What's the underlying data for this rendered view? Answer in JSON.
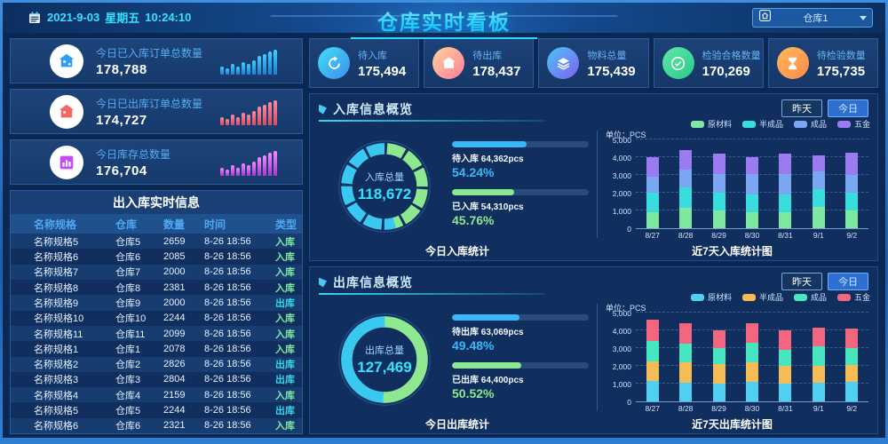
{
  "header": {
    "date": "2021-9-03",
    "weekday": "星期五",
    "time": "10:24:10",
    "title": "仓库实时看板",
    "warehouse": "仓库1"
  },
  "left_cards": [
    {
      "label": "今日已入库订单总数量",
      "value": "178,788",
      "icon": "warehouse-in",
      "accent": "#2f9df4",
      "bar_from": "#1f7fd0",
      "bar_to": "#3ecfff",
      "bars": [
        4,
        3,
        5,
        4,
        6,
        5,
        7,
        9,
        10,
        11,
        12
      ]
    },
    {
      "label": "今日已出库订单总数量",
      "value": "174,727",
      "icon": "warehouse-out",
      "accent": "#f4695f",
      "bar_from": "#d84a5f",
      "bar_to": "#ff8aa0",
      "bars": [
        4,
        3,
        5,
        4,
        6,
        5,
        7,
        9,
        10,
        11,
        12
      ]
    },
    {
      "label": "今日库存总数量",
      "value": "176,704",
      "icon": "inventory-chart",
      "accent": "#c44df0",
      "bar_from": "#a43ad0",
      "bar_to": "#f48aff",
      "bars": [
        4,
        3,
        5,
        4,
        6,
        5,
        7,
        9,
        10,
        11,
        12
      ]
    }
  ],
  "table": {
    "title": "出入库实时信息",
    "columns": [
      "名称规格",
      "仓库",
      "数量",
      "时间",
      "类型"
    ],
    "type_colors": {
      "入库": "#7de8a2",
      "出库": "#35d6e8"
    },
    "rows": [
      [
        "名称规格5",
        "仓库5",
        "2659",
        "8-26 18:56",
        "入库"
      ],
      [
        "名称规格6",
        "仓库6",
        "2085",
        "8-26 18:56",
        "入库"
      ],
      [
        "名称规格7",
        "仓库7",
        "2000",
        "8-26 18:56",
        "入库"
      ],
      [
        "名称规格8",
        "仓库8",
        "2381",
        "8-26 18:56",
        "入库"
      ],
      [
        "名称规格9",
        "仓库9",
        "2000",
        "8-26 18:56",
        "出库"
      ],
      [
        "名称规格10",
        "仓库10",
        "2244",
        "8-26 18:56",
        "入库"
      ],
      [
        "名称规格11",
        "仓库11",
        "2099",
        "8-26 18:56",
        "入库"
      ],
      [
        "名称规格1",
        "仓库1",
        "2078",
        "8-26 18:56",
        "入库"
      ],
      [
        "名称规格2",
        "仓库2",
        "2826",
        "8-26 18:56",
        "出库"
      ],
      [
        "名称规格3",
        "仓库3",
        "2804",
        "8-26 18:56",
        "出库"
      ],
      [
        "名称规格4",
        "仓库4",
        "2159",
        "8-26 18:56",
        "入库"
      ],
      [
        "名称规格5",
        "仓库5",
        "2244",
        "8-26 18:56",
        "出库"
      ],
      [
        "名称规格6",
        "仓库6",
        "2321",
        "8-26 18:56",
        "入库"
      ]
    ]
  },
  "tiles": [
    {
      "label": "待入库",
      "value": "175,494",
      "icon": "refresh",
      "grad_from": "#3ee0f5",
      "grad_to": "#3f8cf0"
    },
    {
      "label": "待出库",
      "value": "178,437",
      "icon": "warehouse-out",
      "grad_from": "#ffd29a",
      "grad_to": "#ff7e9a"
    },
    {
      "label": "物料总量",
      "value": "175,439",
      "icon": "layers",
      "grad_from": "#4fc3f7",
      "grad_to": "#7b61f0"
    },
    {
      "label": "检验合格数量",
      "value": "170,269",
      "icon": "check-circle",
      "grad_from": "#5fe8a8",
      "grad_to": "#2bc98a"
    },
    {
      "label": "待检验数量",
      "value": "175,735",
      "icon": "hourglass",
      "grad_from": "#ffb85c",
      "grad_to": "#ff8a4a"
    }
  ],
  "panels": [
    {
      "title": "入库信息概览",
      "btn_yesterday": "昨天",
      "btn_today": "今日",
      "donut": {
        "label": "入库总量",
        "value": "118,672",
        "segmented": true,
        "slices": [
          {
            "name": "已入库",
            "pct": 45.76,
            "color": "#8de88f"
          },
          {
            "name": "待入库",
            "pct": 54.24,
            "color": "#38c8f0"
          }
        ]
      },
      "hbars": [
        {
          "label": "待入库 64,362pcs",
          "pct_text": "54.24%",
          "pct": 54.24,
          "color": "#38b8f8"
        },
        {
          "label": "已入库 54,310pcs",
          "pct_text": "45.76%",
          "pct": 45.76,
          "color": "#8de88f"
        }
      ],
      "caption_left": "今日入库统计",
      "caption_right": "近7天入库统计图"
    },
    {
      "title": "出库信息概览",
      "btn_yesterday": "昨天",
      "btn_today": "今日",
      "donut": {
        "label": "出库总量",
        "value": "127,469",
        "segmented": false,
        "slices": [
          {
            "name": "已出库",
            "pct": 50.52,
            "color": "#8de88f"
          },
          {
            "name": "待出库",
            "pct": 49.48,
            "color": "#38c8f0"
          }
        ]
      },
      "hbars": [
        {
          "label": "待出库 63,069pcs",
          "pct_text": "49.48%",
          "pct": 49.48,
          "color": "#38b8f8"
        },
        {
          "label": "已出库 64,400pcs",
          "pct_text": "50.52%",
          "pct": 50.52,
          "color": "#8de88f"
        }
      ],
      "caption_left": "今日出库统计",
      "caption_right": "近7天出库统计图"
    }
  ],
  "chart_data": [
    {
      "type": "bar",
      "stacked": true,
      "title": "近7天入库统计图",
      "unit_label": "单位：PCS",
      "categories": [
        "8/27",
        "8/28",
        "8/29",
        "8/30",
        "8/31",
        "9/1",
        "9/2"
      ],
      "series": [
        {
          "name": "原材料",
          "color": "#7ee8a0",
          "values": [
            900,
            1150,
            1000,
            900,
            900,
            1200,
            1000
          ]
        },
        {
          "name": "半成品",
          "color": "#38dede",
          "values": [
            1100,
            1150,
            1000,
            1000,
            1000,
            1000,
            1000
          ]
        },
        {
          "name": "成品",
          "color": "#7aa6f2",
          "values": [
            900,
            1000,
            1050,
            1150,
            1150,
            1000,
            1000
          ]
        },
        {
          "name": "五金",
          "color": "#9b7cf0",
          "values": [
            1100,
            1080,
            1150,
            950,
            1130,
            920,
            1250
          ]
        }
      ],
      "ylim": [
        0,
        5000
      ],
      "yticks": [
        "0",
        "1,000",
        "2,000",
        "3,000",
        "4,000",
        "5,000"
      ]
    },
    {
      "type": "bar",
      "stacked": true,
      "title": "近7天出库统计图",
      "unit_label": "单位：PCS",
      "categories": [
        "8/27",
        "8/28",
        "8/29",
        "8/30",
        "8/31",
        "9/1",
        "9/2"
      ],
      "series": [
        {
          "name": "原材料",
          "color": "#4fd0f0",
          "values": [
            1150,
            1050,
            1000,
            1100,
            1000,
            1050,
            1100
          ]
        },
        {
          "name": "半成品",
          "color": "#f5bc55",
          "values": [
            1100,
            1150,
            1100,
            1100,
            1000,
            950,
            950
          ]
        },
        {
          "name": "成品",
          "color": "#45e6c0",
          "values": [
            1150,
            1050,
            880,
            1080,
            900,
            1100,
            950
          ]
        },
        {
          "name": "五金",
          "color": "#f2677f",
          "values": [
            1200,
            1170,
            1000,
            1140,
            1100,
            1050,
            1080
          ]
        }
      ],
      "ylim": [
        0,
        5000
      ],
      "yticks": [
        "0",
        "1,000",
        "2,000",
        "3,000",
        "4,000",
        "5,000"
      ]
    }
  ]
}
